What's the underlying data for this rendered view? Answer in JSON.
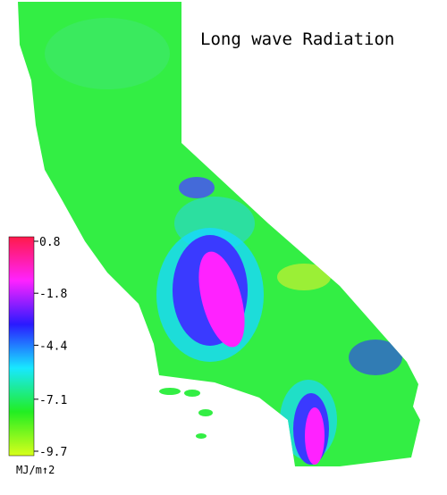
{
  "title": "Long wave Radiation",
  "colorbar": {
    "ticks": [
      0.8,
      -1.8,
      -4.4,
      -7.1,
      -9.7
    ],
    "unit": "MJ/m↑2",
    "colors": [
      "#ff1a4a",
      "#ff22ff",
      "#2a1aff",
      "#18e8ff",
      "#22ee22",
      "#d8ff1a"
    ]
  }
}
